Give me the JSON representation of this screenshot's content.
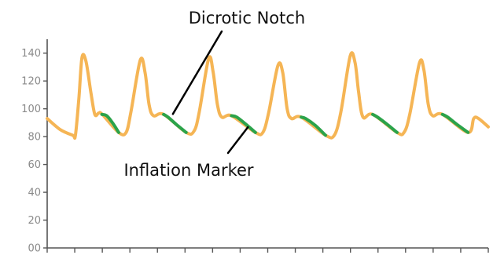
{
  "chart_data": {
    "type": "line",
    "title": "",
    "xlabel": "",
    "ylabel": "",
    "ylim": [
      0,
      150
    ],
    "yticks": [
      0,
      20,
      40,
      60,
      80,
      100,
      120,
      140
    ],
    "ytick_labels": [
      "00",
      "20",
      "40",
      "60",
      "80",
      "100",
      "120",
      "140"
    ],
    "xlim": [
      0,
      100
    ],
    "x_tick_count": 16,
    "grid": false,
    "legend": "none",
    "colors": {
      "waveform": "#F5B555",
      "inflation": "#2BA34A",
      "axis": "#555555",
      "annotation_line": "#000000"
    },
    "series": [
      {
        "role": "waveform",
        "x": [
          0,
          3.0,
          5.8,
          6.4,
          7.2,
          7.9,
          8.8,
          9.9,
          10.8,
          11.7,
          12.5,
          16.2,
          17.9,
          19.0,
          21.1,
          22.2,
          23.1,
          24.1,
          26.4,
          31.5,
          33.3,
          34.5,
          36.6,
          37.6,
          38.6,
          39.6,
          41.8,
          47.2,
          48.9,
          50.2,
          52.3,
          53.4,
          54.4,
          55.4,
          57.6,
          63.1,
          65.1,
          66.6,
          68.7,
          69.8,
          70.6,
          71.6,
          73.8,
          79.3,
          80.9,
          82.2,
          84.4,
          85.4,
          86.4,
          87.4,
          89.6,
          95.4,
          96.7,
          97.8,
          100
        ],
        "y": [
          93,
          85,
          81,
          81,
          108,
          137,
          134,
          112,
          96,
          97,
          96,
          83,
          83,
          98,
          135,
          126,
          103,
          95,
          96,
          83,
          84,
          98,
          136,
          127,
          103,
          94,
          95,
          83,
          83,
          97,
          131,
          126,
          100,
          93,
          94,
          81,
          81,
          98,
          138,
          133,
          112,
          94,
          96,
          83,
          83,
          96,
          133,
          128,
          103,
          95,
          96,
          83,
          93,
          93,
          87
        ]
      },
      {
        "role": "inflation",
        "segments": [
          {
            "x": [
              12.4,
              13.5,
              14.8,
              16.2
            ],
            "y": [
              96,
              95,
              90,
              83
            ]
          },
          {
            "x": [
              26.4,
              27.4,
              29.2,
              31.5
            ],
            "y": [
              96,
              94,
              89,
              83
            ]
          },
          {
            "x": [
              41.8,
              43.0,
              45.0,
              47.2
            ],
            "y": [
              95,
              94,
              89,
              83
            ]
          },
          {
            "x": [
              57.6,
              58.6,
              60.8,
              63.1
            ],
            "y": [
              94,
              93,
              88,
              81
            ]
          },
          {
            "x": [
              73.8,
              74.9,
              77.0,
              79.3
            ],
            "y": [
              96,
              94,
              89,
              83
            ]
          },
          {
            "x": [
              89.6,
              90.8,
              92.8,
              95.4
            ],
            "y": [
              96,
              94,
              89,
              83
            ]
          }
        ]
      }
    ],
    "annotations": [
      {
        "text": "Dicrotic Notch",
        "point": [
          28.5,
          94
        ]
      },
      {
        "text": "Inflation Marker",
        "point": [
          45.5,
          89
        ]
      }
    ]
  }
}
